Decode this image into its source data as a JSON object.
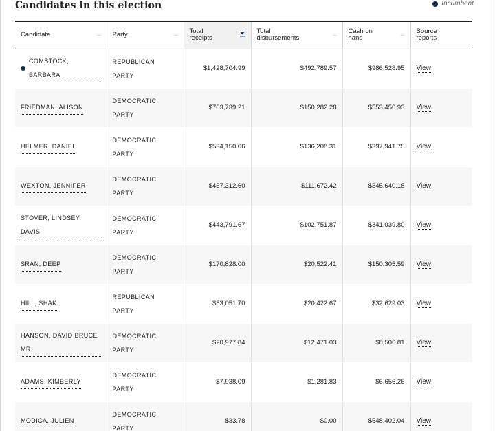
{
  "section": {
    "title": "Candidates in this election",
    "legend_label": "Incumbent",
    "legend_color": "#112e51"
  },
  "table": {
    "columns": [
      {
        "label": "Candidate",
        "sort_icon": "sort-neutral-icon"
      },
      {
        "label": "Party",
        "sort_icon": "sort-neutral-icon"
      },
      {
        "label": "Total receipts",
        "sort_icon": "sort-descending-icon"
      },
      {
        "label": "Total disbursements",
        "sort_icon": "sort-neutral-icon"
      },
      {
        "label": "Cash on hand",
        "sort_icon": "sort-neutral-icon"
      },
      {
        "label": "Source reports",
        "sort_icon": ""
      }
    ],
    "rows": [
      {
        "candidate": "COMSTOCK, BARBARA",
        "incumbent": true,
        "party": "REPUBLICAN PARTY",
        "receipts": "$1,428,704.99",
        "disbursements": "$492,789.57",
        "cash": "$986,528.95",
        "source": "View"
      },
      {
        "candidate": "FRIEDMAN, ALISON",
        "incumbent": false,
        "party": "DEMOCRATIC PARTY",
        "receipts": "$703,739.21",
        "disbursements": "$150,282.28",
        "cash": "$553,456.93",
        "source": "View"
      },
      {
        "candidate": "HELMER, DANIEL",
        "incumbent": false,
        "party": "DEMOCRATIC PARTY",
        "receipts": "$534,150.06",
        "disbursements": "$136,208.31",
        "cash": "$397,941.75",
        "source": "View"
      },
      {
        "candidate": "WEXTON, JENNIFER",
        "incumbent": false,
        "party": "DEMOCRATIC PARTY",
        "receipts": "$457,312.60",
        "disbursements": "$111,672.42",
        "cash": "$345,640.18",
        "source": "View"
      },
      {
        "candidate": "STOVER, LINDSEY DAVIS",
        "incumbent": false,
        "party": "DEMOCRATIC PARTY",
        "receipts": "$443,791.67",
        "disbursements": "$102,751.87",
        "cash": "$341,039.80",
        "source": "View"
      },
      {
        "candidate": "SRAN, DEEP",
        "incumbent": false,
        "party": "DEMOCRATIC PARTY",
        "receipts": "$170,828.00",
        "disbursements": "$20,522.41",
        "cash": "$150,305.59",
        "source": "View"
      },
      {
        "candidate": "HILL, SHAK",
        "incumbent": false,
        "party": "REPUBLICAN PARTY",
        "receipts": "$53,051.70",
        "disbursements": "$20,422.67",
        "cash": "$32,629.03",
        "source": "View"
      },
      {
        "candidate": "HANSON, DAVID BRUCE MR.",
        "incumbent": false,
        "party": "DEMOCRATIC PARTY",
        "receipts": "$20,977.84",
        "disbursements": "$12,471.03",
        "cash": "$8,506.81",
        "source": "View"
      },
      {
        "candidate": "ADAMS, KIMBERLY",
        "incumbent": false,
        "party": "DEMOCRATIC PARTY",
        "receipts": "$7,938.09",
        "disbursements": "$1,281.83",
        "cash": "$6,656.26",
        "source": "View"
      },
      {
        "candidate": "MODICA, JULIEN",
        "incumbent": false,
        "party": "DEMOCRATIC PARTY",
        "receipts": "$33.78",
        "disbursements": "$0.00",
        "cash": "$548,402.04",
        "source": "View"
      }
    ]
  }
}
